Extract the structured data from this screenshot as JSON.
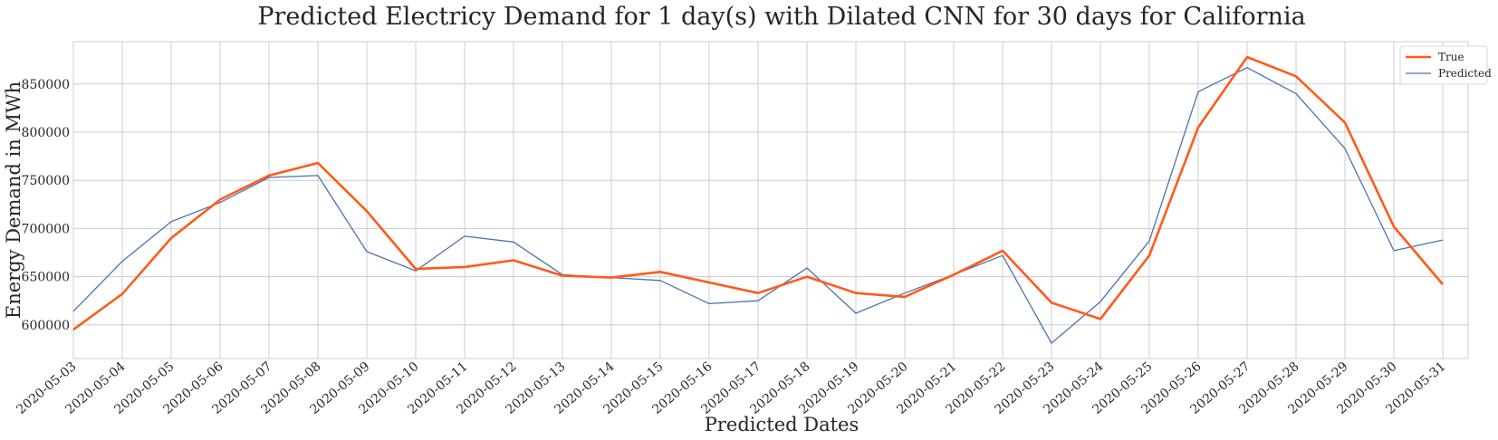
{
  "chart_data": {
    "type": "line",
    "title": "Predicted Electricy Demand for 1 day(s) with Dilated CNN for 30 days for California",
    "xlabel": "Predicted Dates",
    "ylabel": "Energy Demand in MWh",
    "x": [
      "2020-05-03",
      "2020-05-04",
      "2020-05-05",
      "2020-05-06",
      "2020-05-07",
      "2020-05-08",
      "2020-05-09",
      "2020-05-10",
      "2020-05-11",
      "2020-05-12",
      "2020-05-13",
      "2020-05-14",
      "2020-05-15",
      "2020-05-16",
      "2020-05-17",
      "2020-05-18",
      "2020-05-19",
      "2020-05-20",
      "2020-05-21",
      "2020-05-22",
      "2020-05-23",
      "2020-05-24",
      "2020-05-25",
      "2020-05-26",
      "2020-05-27",
      "2020-05-28",
      "2020-05-29",
      "2020-05-30",
      "2020-05-31"
    ],
    "ylim": [
      565000,
      894000
    ],
    "yticks": [
      600000,
      650000,
      700000,
      750000,
      800000,
      850000
    ],
    "ytick_labels": [
      "600000",
      "650000",
      "700000",
      "750000",
      "800000",
      "850000"
    ],
    "grid": true,
    "legend": "top-right",
    "series": [
      {
        "name": "True",
        "color": "#ff5a1a",
        "line_width": "thick",
        "values": [
          595000,
          632000,
          690000,
          730000,
          755000,
          768000,
          718000,
          658000,
          660000,
          667000,
          651000,
          649000,
          655000,
          644000,
          633000,
          650000,
          633000,
          629000,
          652000,
          677000,
          623000,
          606000,
          672000,
          805000,
          878000,
          858000,
          810000,
          702000,
          642000
        ]
      },
      {
        "name": "Predicted",
        "color": "#4c72b0",
        "line_width": "thin",
        "values": [
          614000,
          666000,
          707000,
          727000,
          753000,
          755000,
          676000,
          656000,
          692000,
          686000,
          652000,
          649000,
          646000,
          622000,
          625000,
          659000,
          612000,
          633000,
          652000,
          672000,
          581000,
          624000,
          687000,
          842000,
          867000,
          840000,
          783000,
          677000,
          688000
        ]
      }
    ]
  }
}
